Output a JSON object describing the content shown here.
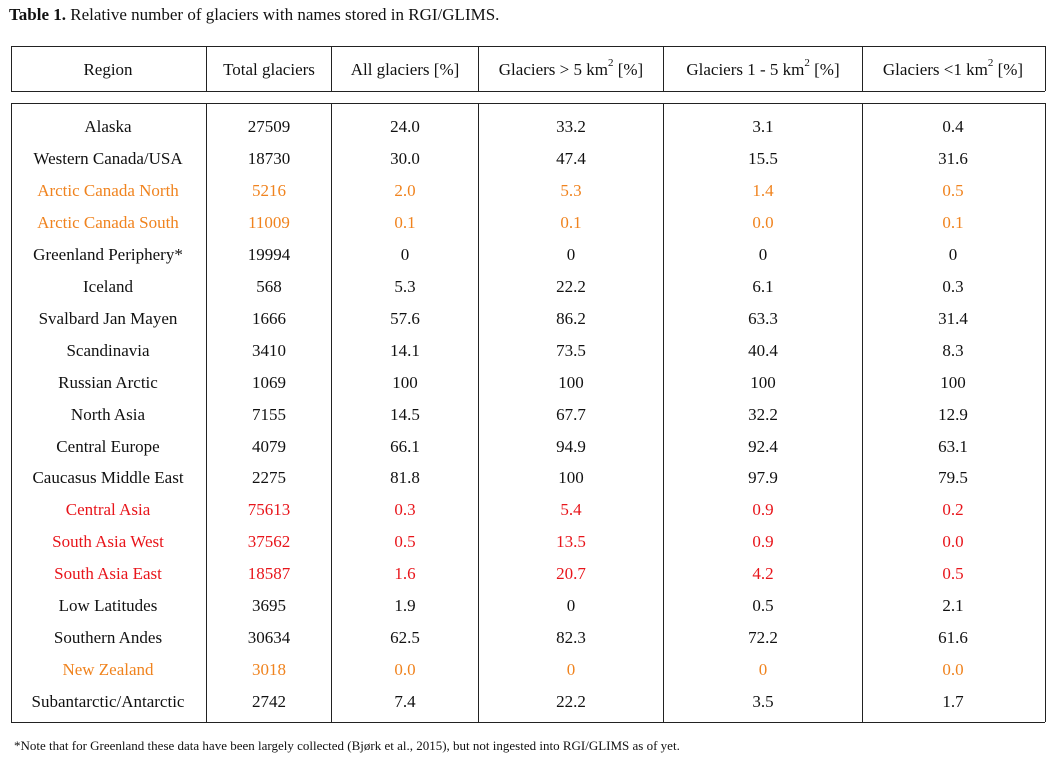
{
  "caption": {
    "label": "Table 1.",
    "text": "Relative number of glaciers with names stored in RGI/GLIMS."
  },
  "headers": [
    {
      "text": "Region"
    },
    {
      "text": "Total glaciers"
    },
    {
      "text": "All glaciers [%]"
    },
    {
      "text": "Glaciers > 5 km",
      "sup": "2",
      "post": " [%]"
    },
    {
      "text": "Glaciers 1 - 5 km",
      "sup": "2",
      "post": " [%]"
    },
    {
      "text": "Glaciers <1 km",
      "sup": "2",
      "post": " [%]"
    }
  ],
  "colors": {
    "default": "#111111",
    "orange": "#f0831e",
    "red": "#e8151b"
  },
  "rows": [
    {
      "cells": [
        "Alaska",
        "27509",
        "24.0",
        "33.2",
        "3.1",
        "0.4"
      ],
      "color": "default"
    },
    {
      "cells": [
        "Western Canada/USA",
        "18730",
        "30.0",
        "47.4",
        "15.5",
        "31.6"
      ],
      "color": "default"
    },
    {
      "cells": [
        "Arctic Canada North",
        "5216",
        "2.0",
        "5.3",
        "1.4",
        "0.5"
      ],
      "color": "orange"
    },
    {
      "cells": [
        "Arctic Canada South",
        "11009",
        "0.1",
        "0.1",
        "0.0",
        "0.1"
      ],
      "color": "orange"
    },
    {
      "cells": [
        "Greenland Periphery*",
        "19994",
        "0",
        "0",
        "0",
        "0"
      ],
      "color": "default"
    },
    {
      "cells": [
        "Iceland",
        "568",
        "5.3",
        "22.2",
        "6.1",
        "0.3"
      ],
      "color": "default"
    },
    {
      "cells": [
        "Svalbard Jan Mayen",
        "1666",
        "57.6",
        "86.2",
        "63.3",
        "31.4"
      ],
      "color": "default"
    },
    {
      "cells": [
        "Scandinavia",
        "3410",
        "14.1",
        "73.5",
        "40.4",
        "8.3"
      ],
      "color": "default"
    },
    {
      "cells": [
        "Russian Arctic",
        "1069",
        "100",
        "100",
        "100",
        "100"
      ],
      "color": "default"
    },
    {
      "cells": [
        "North Asia",
        "7155",
        "14.5",
        "67.7",
        "32.2",
        "12.9"
      ],
      "color": "default"
    },
    {
      "cells": [
        "Central Europe",
        "4079",
        "66.1",
        "94.9",
        "92.4",
        "63.1"
      ],
      "color": "default"
    },
    {
      "cells": [
        "Caucasus Middle East",
        "2275",
        "81.8",
        "100",
        "97.9",
        "79.5"
      ],
      "color": "default"
    },
    {
      "cells": [
        "Central Asia",
        "75613",
        "0.3",
        "5.4",
        "0.9",
        "0.2"
      ],
      "color": "red"
    },
    {
      "cells": [
        "South Asia West",
        "37562",
        "0.5",
        "13.5",
        "0.9",
        "0.0"
      ],
      "color": "red"
    },
    {
      "cells": [
        "South Asia East",
        "18587",
        "1.6",
        "20.7",
        "4.2",
        "0.5"
      ],
      "color": "red"
    },
    {
      "cells": [
        "Low Latitudes",
        "3695",
        "1.9",
        "0",
        "0.5",
        "2.1"
      ],
      "color": "default"
    },
    {
      "cells": [
        "Southern Andes",
        "30634",
        "62.5",
        "82.3",
        "72.2",
        "61.6"
      ],
      "color": "default"
    },
    {
      "cells": [
        "New Zealand",
        "3018",
        "0.0",
        "0",
        "0",
        "0.0"
      ],
      "color": "orange"
    },
    {
      "cells": [
        "Subantarctic/Antarctic",
        "2742",
        "7.4",
        "22.2",
        "3.5",
        "1.7"
      ],
      "color": "default"
    }
  ],
  "footnote": "*Note that for Greenland these data have been largely collected (Bjørk et al., 2015), but not ingested into RGI/GLIMS as of yet."
}
